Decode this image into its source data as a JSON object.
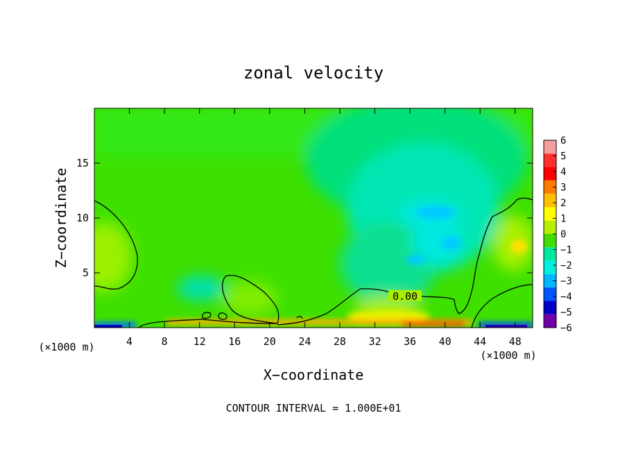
{
  "chart_data": {
    "type": "heatmap",
    "title": "zonal velocity",
    "xlabel": "X−coordinate",
    "ylabel": "Z−coordinate",
    "x_units_left": "(×1000 m)",
    "x_units_right": "(×1000 m)",
    "xlim": [
      0,
      50
    ],
    "ylim": [
      0,
      20
    ],
    "x_ticks": [
      4,
      8,
      12,
      16,
      20,
      24,
      28,
      32,
      36,
      40,
      44,
      48
    ],
    "y_ticks": [
      5,
      10,
      15
    ],
    "colorbar": {
      "ticks": [
        6,
        5,
        4,
        3,
        2,
        1,
        0,
        -1,
        -2,
        -3,
        -4,
        -5,
        -6
      ],
      "tick_labels": [
        "6",
        "5",
        "4",
        "3",
        "2",
        "1",
        "0",
        "−1",
        "−2",
        "−3",
        "−4",
        "−5",
        "−6"
      ],
      "colors": [
        "#f4a0a0",
        "#ff3030",
        "#ff0000",
        "#ff7a00",
        "#ffc000",
        "#ffff00",
        "#b8f000",
        "#44dd00",
        "#00e8a0",
        "#00f0e0",
        "#00b8ff",
        "#0055ff",
        "#0000c8",
        "#7000a8"
      ]
    },
    "contour_label": "0.00",
    "contour_value": 0,
    "footer": "CONTOUR INTERVAL = 1.000E+01"
  }
}
